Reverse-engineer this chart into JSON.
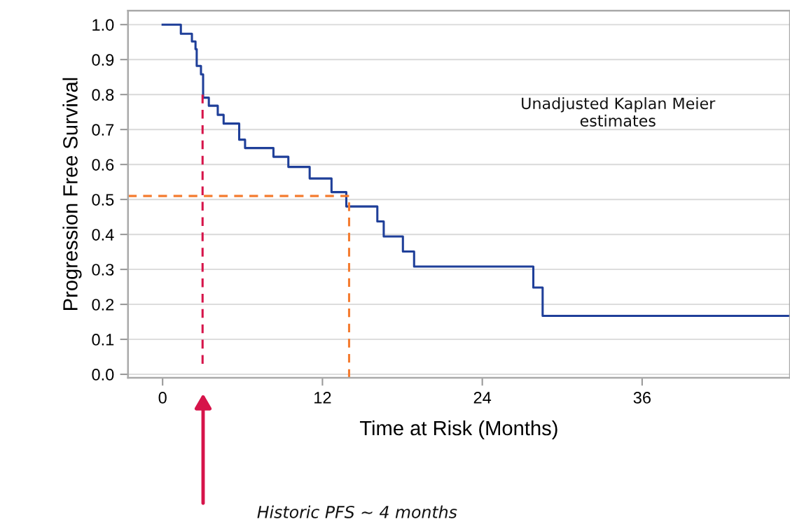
{
  "chart_data": {
    "type": "step",
    "xlabel": "Time at Risk (Months)",
    "ylabel": "Progression Free Survival",
    "xlim": [
      -2.6,
      47.1
    ],
    "ylim": [
      -0.01,
      1.04
    ],
    "xticks": [
      0,
      12,
      24,
      36
    ],
    "yticks": [
      {
        "value": 0,
        "label": "0.0"
      },
      {
        "value": 0.1,
        "label": "0.1"
      },
      {
        "value": 0.2,
        "label": "0.2"
      },
      {
        "value": 0.3,
        "label": "0.3"
      },
      {
        "value": 0.4,
        "label": "0.4"
      },
      {
        "value": 0.5,
        "label": "0.5"
      },
      {
        "value": 0.6,
        "label": "0.6"
      },
      {
        "value": 0.7,
        "label": "0.7"
      },
      {
        "value": 0.8,
        "label": "0.8"
      },
      {
        "value": 0.9,
        "label": "0.9"
      },
      {
        "value": 1.0,
        "label": "1.0"
      }
    ],
    "grid": "y",
    "series": [
      {
        "color": "#1f3f99",
        "line_style": "solid",
        "x": [
          0,
          1.37,
          2.2,
          2.47,
          2.56,
          2.88,
          3.04,
          3.47,
          4.14,
          4.58,
          5.75,
          6.19,
          8.32,
          9.44,
          11.04,
          12.68,
          13.79,
          16.12,
          16.6,
          18.04,
          18.88,
          27.83,
          28.53,
          47.1
        ],
        "values": [
          1.0,
          0.974,
          0.952,
          0.93,
          0.882,
          0.858,
          0.791,
          0.768,
          0.742,
          0.717,
          0.671,
          0.647,
          0.622,
          0.593,
          0.56,
          0.521,
          0.48,
          0.437,
          0.394,
          0.351,
          0.308,
          0.248,
          0.167,
          0.167
        ]
      },
      {
        "type": "line",
        "color": "#d6144a",
        "line_style": "dashed",
        "x": [
          3.0,
          3.0
        ],
        "values": [
          0.8,
          0.03
        ]
      },
      {
        "type": "line",
        "color": "#f47c30",
        "line_style": "dashed",
        "x": [
          -2.6,
          14.0,
          14.0
        ],
        "values": [
          0.51,
          0.51,
          -0.01
        ]
      }
    ],
    "annotations": [
      "Unadjusted Kaplan Meier\nestimates",
      "Historic PFS ~ 4 months"
    ]
  }
}
